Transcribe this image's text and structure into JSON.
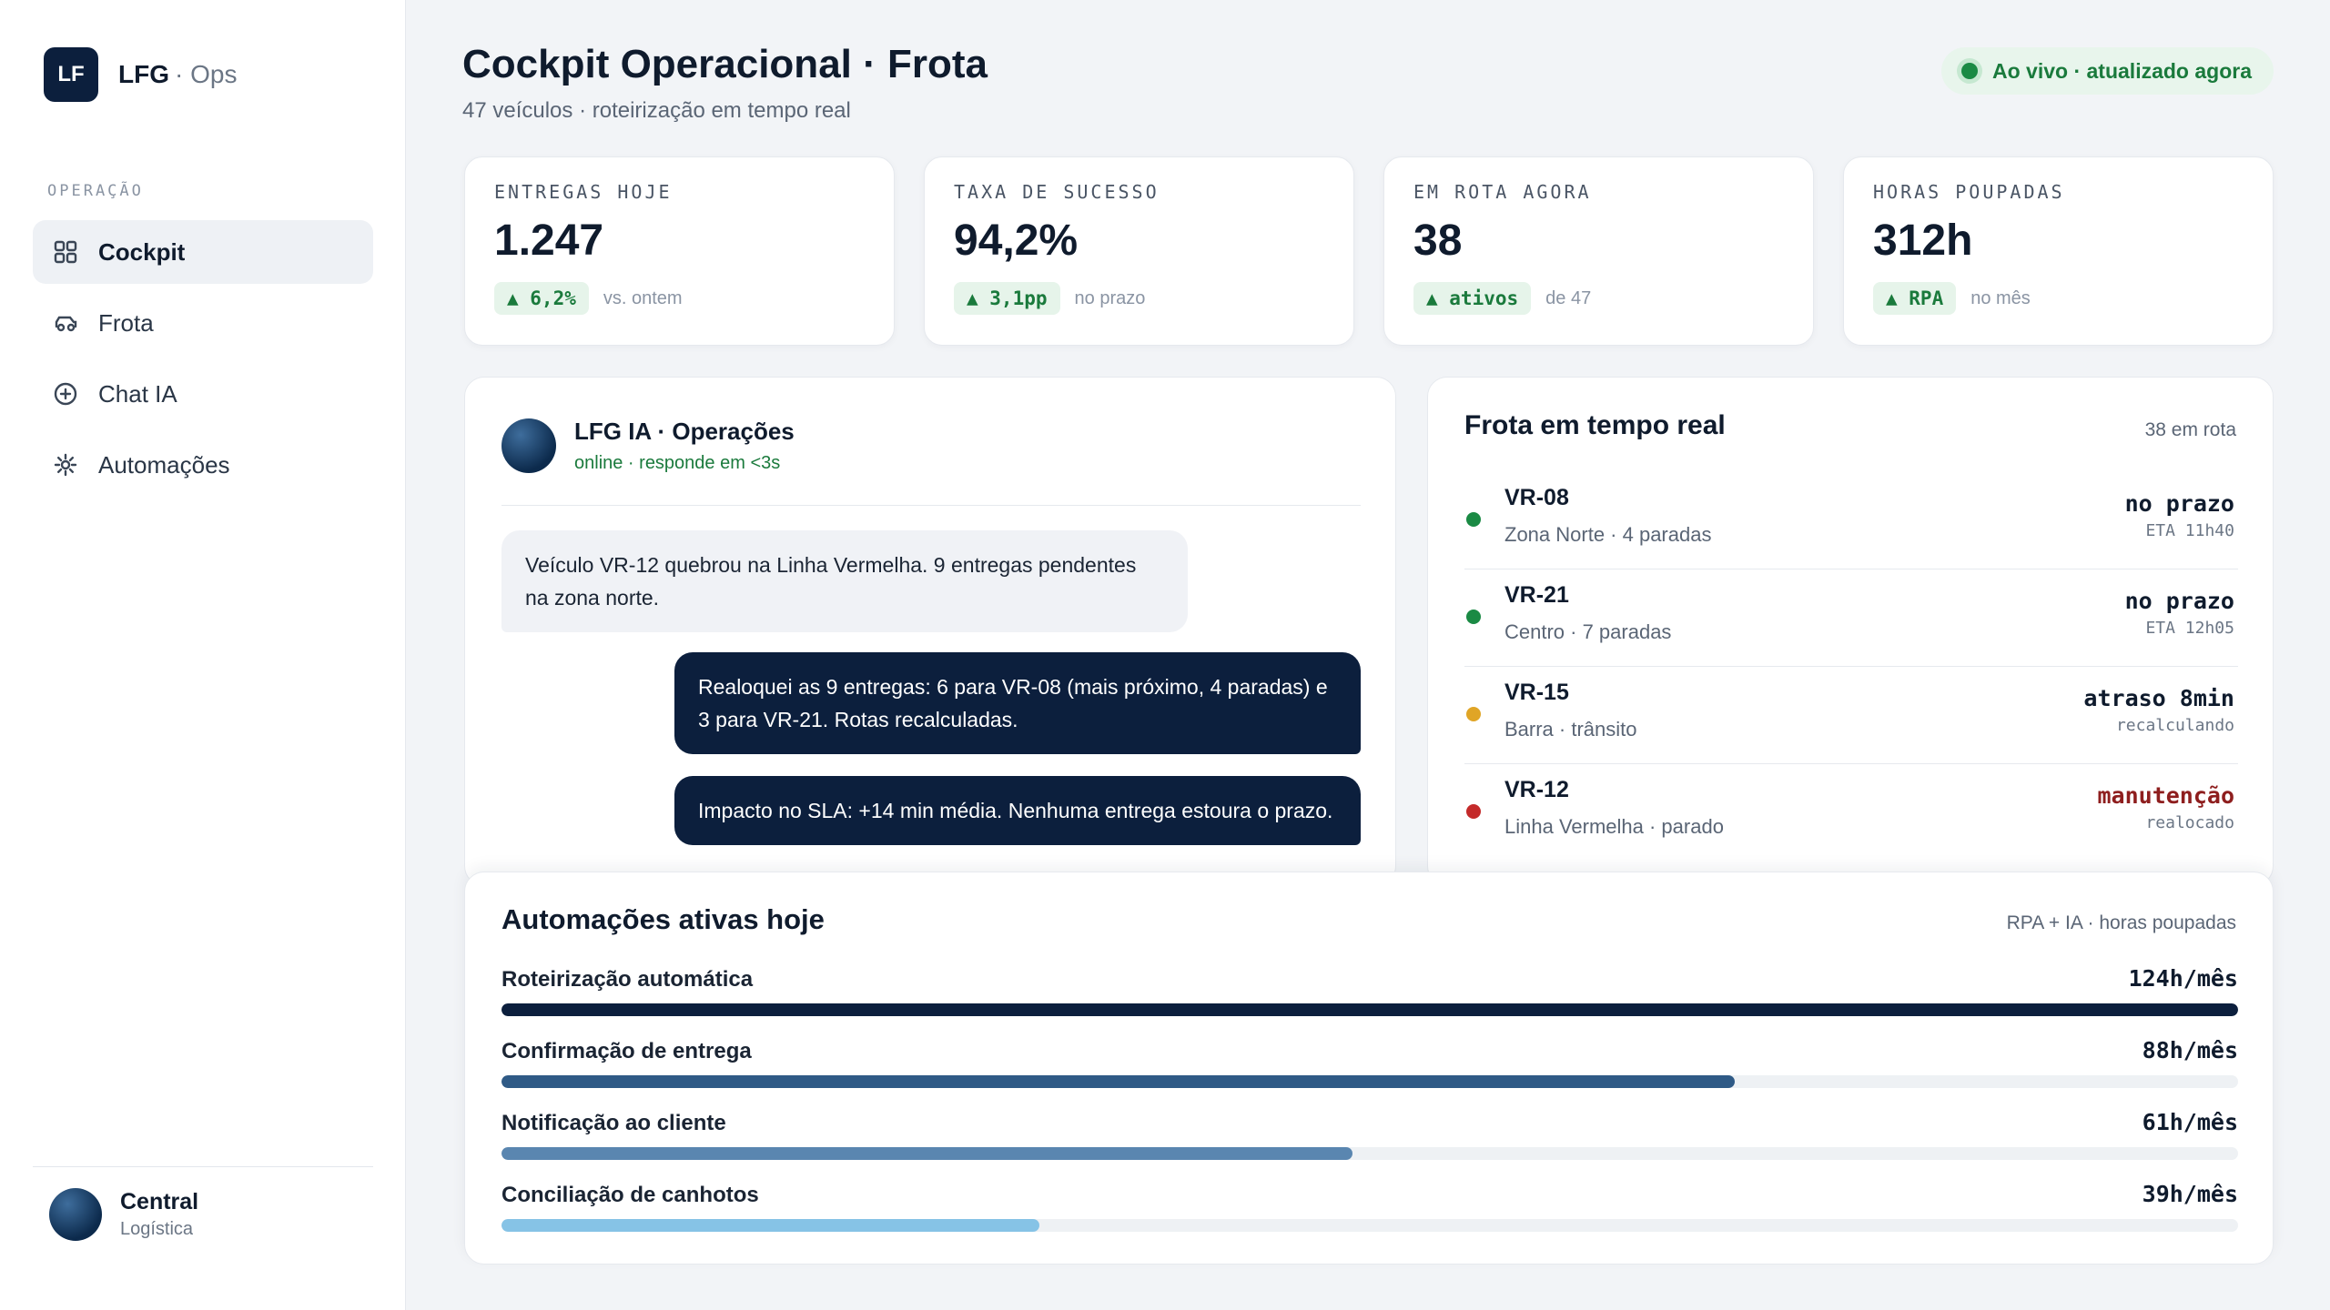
{
  "brand": {
    "logo": "LF",
    "name": "LFG",
    "sub": "· Ops"
  },
  "sidebar": {
    "section": "OPERAÇÃO",
    "items": [
      {
        "label": "Cockpit",
        "icon": "grid-icon",
        "active": true
      },
      {
        "label": "Frota",
        "icon": "car-icon",
        "active": false
      },
      {
        "label": "Chat IA",
        "icon": "plus-circle-icon",
        "active": false
      },
      {
        "label": "Automações",
        "icon": "gear-icon",
        "active": false
      }
    ],
    "user": {
      "name": "Central",
      "role": "Logística"
    }
  },
  "header": {
    "title": "Cockpit Operacional · Frota",
    "subtitle": "47 veículos · roteirização em tempo real",
    "live": "Ao vivo · atualizado agora"
  },
  "kpis": [
    {
      "label": "ENTREGAS HOJE",
      "value": "1.247",
      "pill": "▲ 6,2%",
      "note": "vs. ontem"
    },
    {
      "label": "TAXA DE SUCESSO",
      "value": "94,2%",
      "pill": "▲ 3,1pp",
      "note": "no prazo"
    },
    {
      "label": "EM ROTA AGORA",
      "value": "38",
      "pill": "▲ ativos",
      "note": "de 47"
    },
    {
      "label": "HORAS POUPADAS",
      "value": "312h",
      "pill": "▲ RPA",
      "note": "no mês"
    }
  ],
  "chat": {
    "name": "LFG IA · Operações",
    "status": "online · responde em <3s",
    "messages": [
      {
        "from": "user",
        "text": "Veículo VR-12 quebrou na Linha Vermelha. 9 entregas pendentes na zona norte."
      },
      {
        "from": "bot",
        "text": "Realoquei as 9 entregas: 6 para VR-08 (mais próximo, 4 paradas) e 3 para VR-21. Rotas recalculadas."
      },
      {
        "from": "bot",
        "text": "Impacto no SLA: +14 min média. Nenhuma entrega estoura o prazo."
      }
    ]
  },
  "fleet": {
    "title": "Frota em tempo real",
    "count": "38 em rota",
    "vehicles": [
      {
        "id": "VR-08",
        "sub": "Zona Norte · 4 paradas",
        "status": "no prazo",
        "eta": "ETA 11h40",
        "color": "#1a8a44"
      },
      {
        "id": "VR-21",
        "sub": "Centro · 7 paradas",
        "status": "no prazo",
        "eta": "ETA 12h05",
        "color": "#1a8a44"
      },
      {
        "id": "VR-15",
        "sub": "Barra · trânsito",
        "status": "atraso 8min",
        "eta": "recalculando",
        "color": "#e0a526"
      },
      {
        "id": "VR-12",
        "sub": "Linha Vermelha · parado",
        "status": "manutenção",
        "eta": "realocado",
        "color": "#c42a2a"
      }
    ]
  },
  "automations": {
    "title": "Automações ativas hoje",
    "note": "RPA + IA · horas poupadas",
    "items": [
      {
        "label": "Roteirização automática",
        "value": "124h/mês",
        "fraction": 1.0,
        "color": "#0c1f3d"
      },
      {
        "label": "Confirmação de entrega",
        "value": "88h/mês",
        "fraction": 0.71,
        "color": "#2f5a86"
      },
      {
        "label": "Notificação ao cliente",
        "value": "61h/mês",
        "fraction": 0.49,
        "color": "#5a86b0"
      },
      {
        "label": "Conciliação de canhotos",
        "value": "39h/mês",
        "fraction": 0.31,
        "color": "#86c3e6"
      }
    ]
  }
}
